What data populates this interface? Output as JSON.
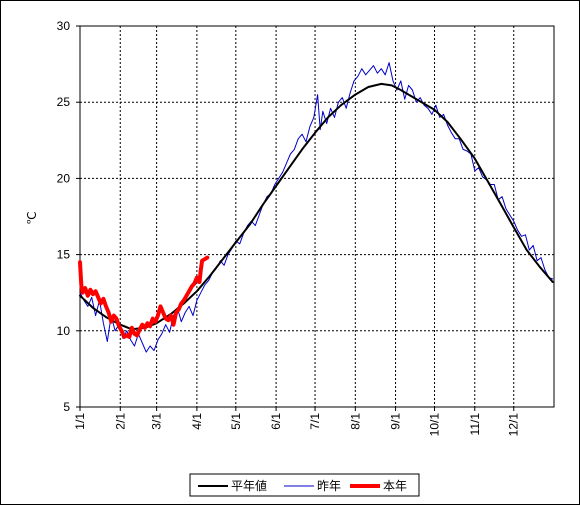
{
  "chart_data": {
    "type": "line",
    "ylabel": "℃",
    "ylim": [
      5,
      30
    ],
    "yticks": [
      5,
      10,
      15,
      20,
      25,
      30
    ],
    "xlim": [
      0,
      365
    ],
    "xticks": [
      {
        "day": 0,
        "label": "1/1"
      },
      {
        "day": 31,
        "label": "2/1"
      },
      {
        "day": 59,
        "label": "3/1"
      },
      {
        "day": 90,
        "label": "4/1"
      },
      {
        "day": 120,
        "label": "5/1"
      },
      {
        "day": 151,
        "label": "6/1"
      },
      {
        "day": 181,
        "label": "7/1"
      },
      {
        "day": 212,
        "label": "8/1"
      },
      {
        "day": 243,
        "label": "9/1"
      },
      {
        "day": 273,
        "label": "10/1"
      },
      {
        "day": 304,
        "label": "11/1"
      },
      {
        "day": 334,
        "label": "12/1"
      }
    ],
    "grid": true,
    "legend_position": "bottom",
    "series": [
      {
        "name": "平年値",
        "color": "#000000",
        "width": 2,
        "x": [
          0,
          10,
          20,
          31,
          40,
          50,
          59,
          70,
          80,
          90,
          100,
          110,
          120,
          131,
          141,
          151,
          161,
          171,
          181,
          191,
          201,
          212,
          222,
          232,
          240,
          247,
          253,
          263,
          273,
          283,
          293,
          304,
          314,
          324,
          334,
          344,
          354,
          364
        ],
        "y": [
          12.3,
          11.5,
          10.9,
          10.4,
          10.1,
          10.2,
          10.5,
          11.1,
          11.8,
          12.6,
          13.6,
          14.7,
          15.8,
          17.0,
          18.3,
          19.5,
          20.7,
          21.9,
          23.0,
          24.0,
          24.8,
          25.5,
          26.0,
          26.2,
          26.1,
          25.8,
          25.5,
          25.0,
          24.5,
          23.7,
          22.6,
          21.3,
          19.8,
          18.3,
          16.8,
          15.3,
          14.2,
          13.2
        ]
      },
      {
        "name": "昨年",
        "color": "#0000cc",
        "width": 1,
        "x": [
          0,
          3,
          6,
          9,
          12,
          15,
          18,
          21,
          24,
          27,
          30,
          33,
          36,
          39,
          42,
          45,
          48,
          51,
          54,
          57,
          60,
          63,
          66,
          69,
          72,
          75,
          78,
          81,
          84,
          87,
          90,
          93,
          96,
          99,
          102,
          105,
          108,
          111,
          114,
          117,
          120,
          123,
          126,
          129,
          132,
          135,
          138,
          141,
          144,
          147,
          150,
          153,
          156,
          159,
          162,
          165,
          168,
          171,
          174,
          177,
          180,
          183,
          185,
          187,
          190,
          193,
          196,
          199,
          202,
          205,
          208,
          211,
          214,
          217,
          220,
          223,
          226,
          229,
          232,
          235,
          238,
          241,
          244,
          247,
          250,
          253,
          256,
          259,
          262,
          265,
          268,
          271,
          274,
          277,
          280,
          283,
          286,
          289,
          292,
          295,
          298,
          301,
          304,
          307,
          310,
          313,
          316,
          319,
          322,
          325,
          328,
          331,
          334,
          337,
          340,
          343,
          346,
          349,
          352,
          355,
          358,
          361,
          364
        ],
        "y": [
          12.5,
          12.0,
          11.6,
          12.2,
          11.0,
          12.0,
          10.5,
          9.3,
          11.0,
          10.0,
          10.4,
          9.5,
          10.0,
          9.4,
          9.0,
          9.8,
          9.2,
          8.6,
          9.0,
          8.7,
          9.4,
          9.8,
          10.4,
          9.9,
          11.0,
          11.5,
          10.6,
          11.2,
          11.6,
          11.0,
          12.0,
          12.5,
          13.0,
          13.3,
          13.8,
          14.1,
          14.6,
          14.3,
          15.0,
          15.4,
          15.9,
          15.7,
          16.4,
          16.9,
          17.2,
          16.9,
          17.6,
          18.3,
          18.8,
          19.0,
          19.6,
          20.0,
          20.4,
          21.0,
          21.6,
          21.9,
          22.6,
          22.9,
          22.4,
          23.4,
          24.0,
          25.5,
          23.2,
          24.4,
          23.6,
          24.6,
          24.0,
          25.0,
          25.3,
          24.6,
          25.6,
          26.4,
          26.7,
          27.2,
          26.8,
          27.1,
          27.4,
          26.9,
          27.2,
          26.8,
          27.6,
          26.4,
          25.8,
          26.4,
          25.2,
          26.1,
          25.8,
          25.0,
          25.3,
          24.8,
          24.6,
          24.2,
          24.8,
          24.0,
          24.2,
          23.5,
          23.0,
          22.6,
          22.6,
          21.9,
          21.8,
          21.6,
          20.5,
          20.7,
          20.1,
          19.9,
          19.6,
          19.6,
          18.6,
          18.8,
          18.0,
          17.6,
          17.2,
          16.6,
          16.2,
          16.3,
          15.3,
          15.6,
          14.6,
          14.8,
          14.0,
          13.5,
          13.4
        ]
      },
      {
        "name": "本年",
        "color": "#ff0000",
        "width": 4,
        "x": [
          0,
          1,
          2,
          4,
          6,
          8,
          10,
          12,
          14,
          16,
          18,
          20,
          22,
          24,
          26,
          28,
          30,
          32,
          34,
          36,
          38,
          40,
          42,
          44,
          46,
          48,
          50,
          52,
          54,
          56,
          58,
          60,
          62,
          64,
          66,
          68,
          70,
          72,
          74,
          76,
          78,
          80,
          82,
          84,
          86,
          88,
          90,
          92,
          93,
          94,
          96,
          98
        ],
        "y": [
          14.5,
          13.0,
          12.5,
          12.8,
          12.3,
          12.7,
          12.4,
          12.6,
          12.2,
          11.8,
          12.1,
          11.6,
          11.2,
          10.6,
          11.0,
          10.8,
          10.3,
          10.0,
          9.6,
          9.7,
          9.6,
          10.2,
          9.8,
          9.7,
          10.1,
          10.4,
          10.2,
          10.5,
          10.3,
          10.8,
          10.6,
          11.0,
          11.6,
          11.2,
          10.8,
          10.7,
          11.0,
          10.4,
          11.2,
          11.4,
          11.8,
          12.0,
          12.3,
          12.6,
          12.9,
          13.1,
          13.5,
          13.2,
          14.0,
          14.6,
          14.7,
          14.8
        ]
      }
    ]
  }
}
